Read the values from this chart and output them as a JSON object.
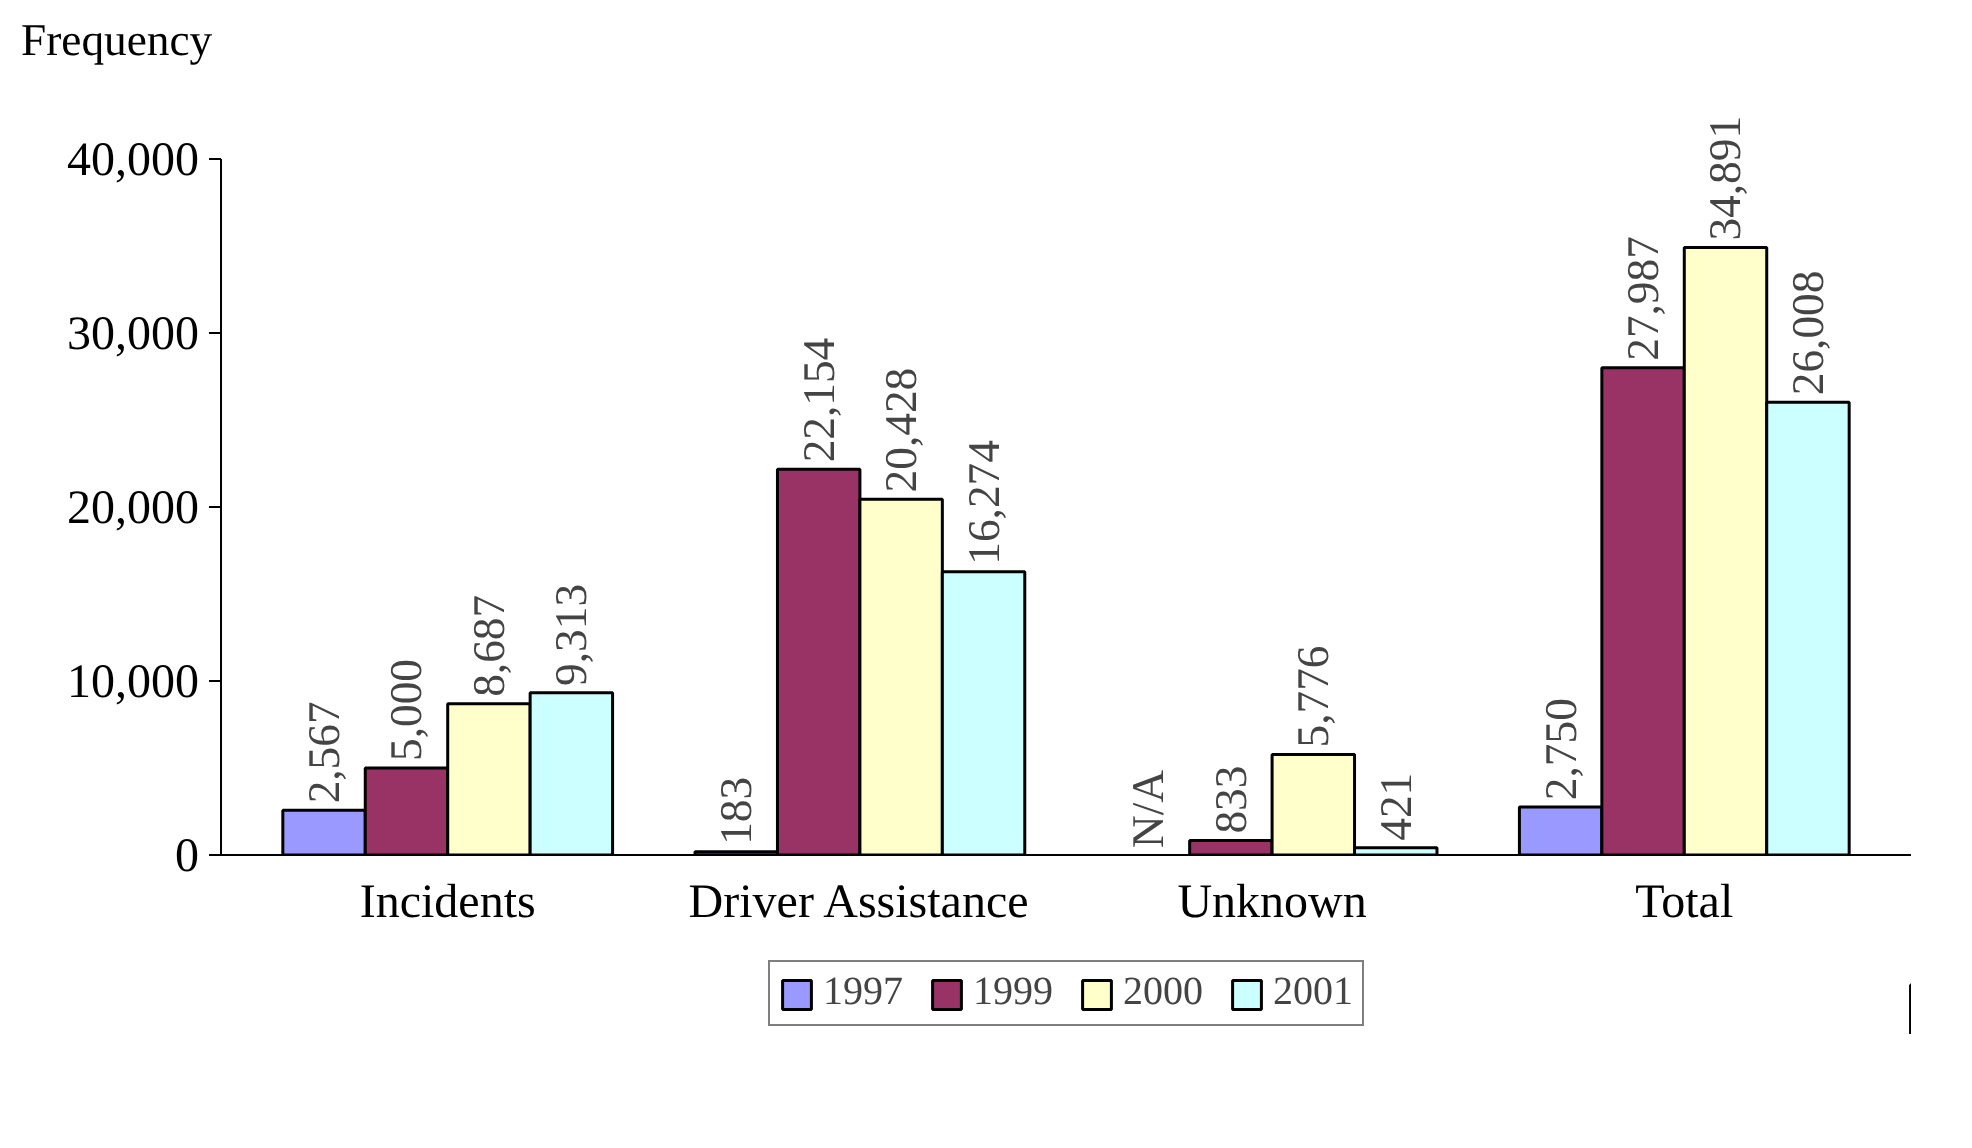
{
  "chart_data": {
    "type": "bar",
    "ylabel": "Frequency",
    "categories": [
      "Incidents",
      "Driver Assistance",
      "Unknown",
      "Total"
    ],
    "series": [
      {
        "name": "1997",
        "color": "#9999ff",
        "values": [
          2567,
          183,
          null,
          2750
        ],
        "value_labels": [
          "2,567",
          "183",
          "N/A",
          "2,750"
        ]
      },
      {
        "name": "1999",
        "color": "#993366",
        "values": [
          5000,
          22154,
          833,
          27987
        ],
        "value_labels": [
          "5,000",
          "22,154",
          "833",
          "27,987"
        ]
      },
      {
        "name": "2000",
        "color": "#ffffcc",
        "values": [
          8687,
          20428,
          5776,
          34891
        ],
        "value_labels": [
          "8,687",
          "20,428",
          "5,776",
          "34,891"
        ]
      },
      {
        "name": "2001",
        "color": "#ccffff",
        "values": [
          9313,
          16274,
          421,
          26008
        ],
        "value_labels": [
          "9,313",
          "16,274",
          "421",
          "26,008"
        ]
      }
    ],
    "ylim": [
      0,
      40000
    ],
    "yticks": [
      0,
      {
        "value": 10000,
        "label": "10,000"
      },
      {
        "value": 20000,
        "label": "20,000"
      },
      {
        "value": 30000,
        "label": "30,000"
      },
      {
        "value": 40000,
        "label": "40,000"
      }
    ],
    "grid": false,
    "legend": "bottom"
  }
}
